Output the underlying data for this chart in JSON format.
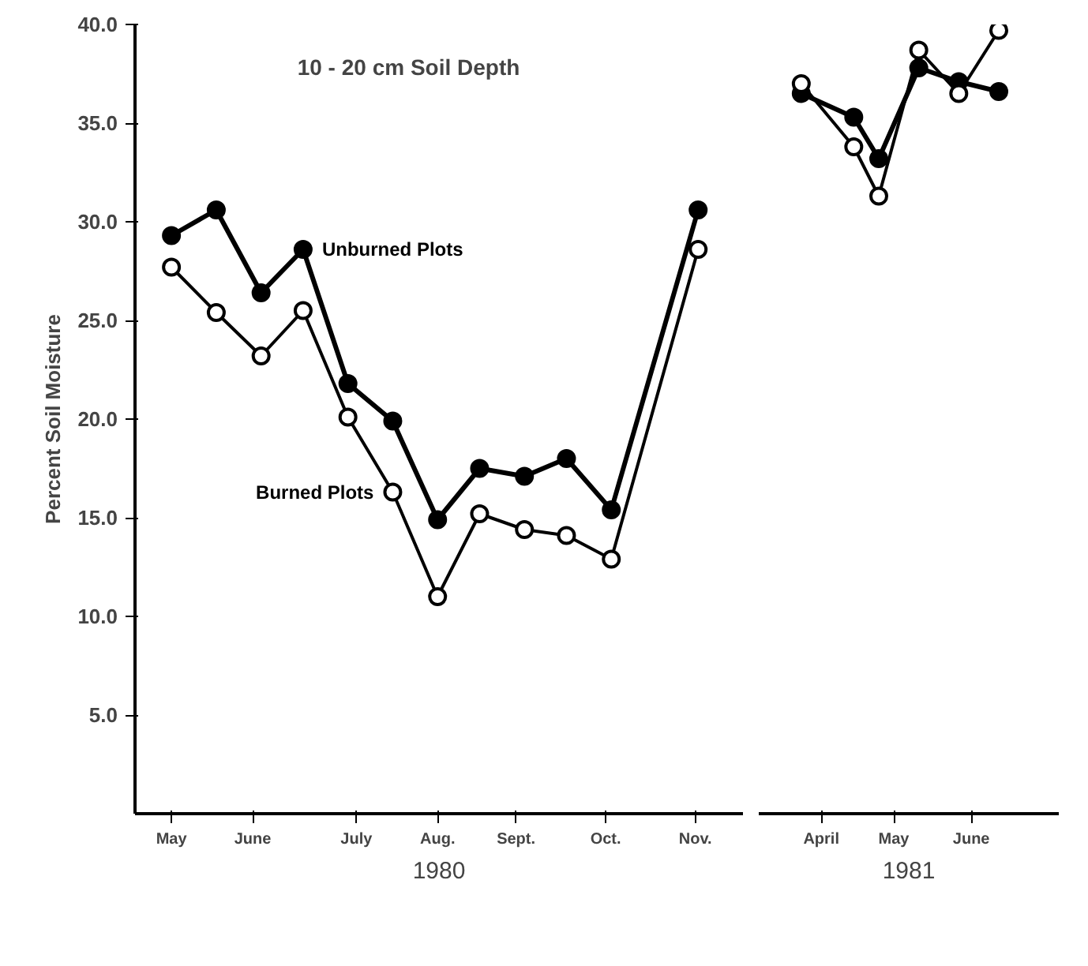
{
  "chart_data": [
    {
      "type": "line",
      "title": "10 - 20 cm Soil Depth",
      "ylabel": "Percent Soil Moisture",
      "xlabel": "1980",
      "x": [
        "1980-05-15",
        "1980-05-31",
        "1980-06-16",
        "1980-07-01",
        "1980-07-17",
        "1980-08-02",
        "1980-08-18",
        "1980-09-02",
        "1980-09-18",
        "1980-10-03",
        "1980-10-19",
        "1980-11-19"
      ],
      "series": [
        {
          "name": "Unburned Plots",
          "color": "#000000",
          "values": [
            29.3,
            30.6,
            26.4,
            28.6,
            21.8,
            19.9,
            14.9,
            17.5,
            17.1,
            18.0,
            15.4,
            30.6
          ]
        },
        {
          "name": "Burned Plots",
          "color": "#000000",
          "values": [
            27.7,
            25.4,
            23.2,
            25.5,
            20.1,
            16.3,
            11.0,
            15.2,
            14.4,
            14.1,
            12.9,
            28.6
          ]
        }
      ],
      "xlim": [
        "1980-05-02",
        "1980-12-05"
      ],
      "xticks": [
        {
          "value": "1980-05-15",
          "label": "May"
        },
        {
          "value": "1980-06-13",
          "label": "June"
        },
        {
          "value": "1980-07-20",
          "label": "July"
        },
        {
          "value": "1980-08-18",
          "label": "Aug."
        },
        {
          "value": "1980-09-15",
          "label": "Sept."
        },
        {
          "value": "1980-10-17",
          "label": "Oct."
        },
        {
          "value": "1980-11-18",
          "label": "Nov."
        }
      ],
      "ylim": [
        0,
        40
      ],
      "yticks": [
        {
          "value": 5,
          "label": "5.0"
        },
        {
          "value": 10,
          "label": "10.0"
        },
        {
          "value": 15,
          "label": "15.0"
        },
        {
          "value": 20,
          "label": "20.0"
        },
        {
          "value": 25,
          "label": "25.0"
        },
        {
          "value": 30,
          "label": "30.0"
        },
        {
          "value": 35,
          "label": "35.0"
        },
        {
          "value": 40,
          "label": "40.0"
        }
      ],
      "marker": "circle",
      "line_style": "solid"
    },
    {
      "type": "line",
      "xlabel": "1981",
      "x": [
        "1981-04-07",
        "1981-04-28",
        "1981-05-08",
        "1981-05-24",
        "1981-06-09",
        "1981-06-25"
      ],
      "series": [
        {
          "color": "#000000",
          "values": [
            36.5,
            35.3,
            33.2,
            37.8,
            37.1,
            36.6
          ]
        },
        {
          "color": "#000000",
          "values": [
            37.0,
            33.8,
            31.3,
            38.7,
            36.5,
            39.7
          ]
        }
      ],
      "xlim": [
        "1981-03-21",
        "1981-07-19"
      ],
      "xticks": [
        {
          "value": "1981-04-15",
          "label": "April"
        },
        {
          "value": "1981-05-14",
          "label": "May"
        },
        {
          "value": "1981-06-14",
          "label": "June"
        }
      ],
      "ylim": [
        0,
        40
      ],
      "tick_labels": "x",
      "marker": "circle",
      "line_style": "solid"
    }
  ]
}
